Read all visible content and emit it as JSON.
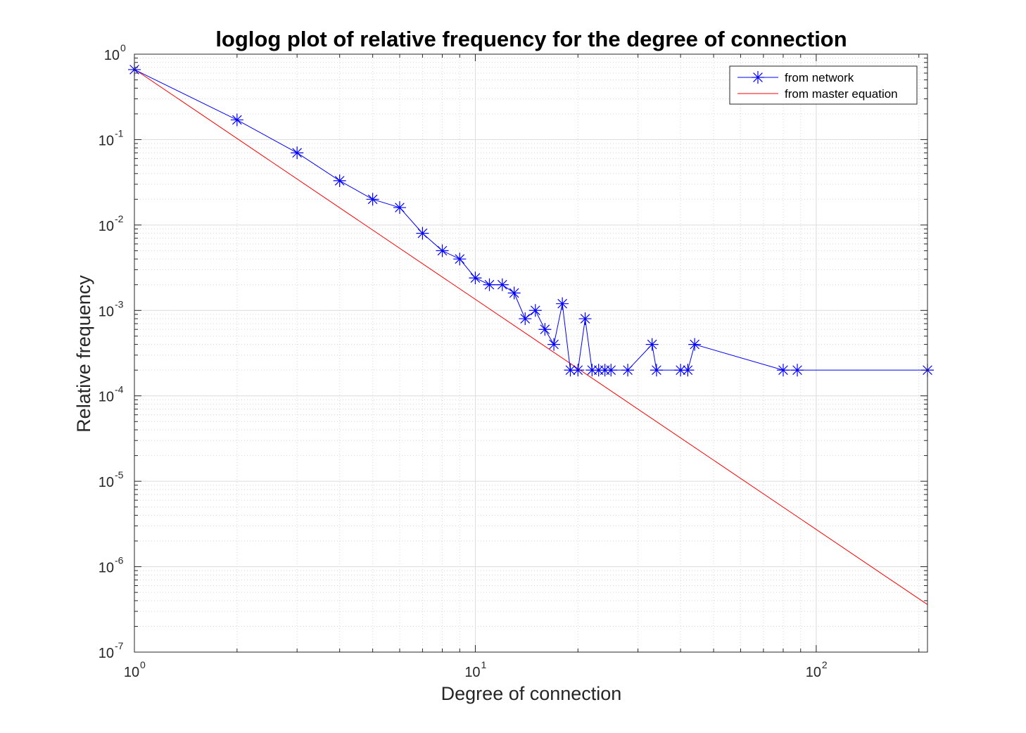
{
  "chart_data": {
    "type": "line",
    "title": "loglog plot of relative frequency for the degree of connection",
    "xlabel": "Degree of connection",
    "ylabel": "Relative frequency",
    "xscale": "log",
    "yscale": "log",
    "xlim": [
      1,
      212
    ],
    "ylim": [
      1e-07,
      1
    ],
    "grid": true,
    "minor_grid": true,
    "legend_position": "top-right",
    "x_ticks": [
      {
        "base": "10",
        "exp": "0",
        "value": 1
      },
      {
        "base": "10",
        "exp": "1",
        "value": 10
      },
      {
        "base": "10",
        "exp": "2",
        "value": 100
      }
    ],
    "y_ticks": [
      {
        "base": "10",
        "exp": "0",
        "value": 1
      },
      {
        "base": "10",
        "exp": "-1",
        "value": 0.1
      },
      {
        "base": "10",
        "exp": "-2",
        "value": 0.01
      },
      {
        "base": "10",
        "exp": "-3",
        "value": 0.001
      },
      {
        "base": "10",
        "exp": "-4",
        "value": 0.0001
      },
      {
        "base": "10",
        "exp": "-5",
        "value": 1e-05
      },
      {
        "base": "10",
        "exp": "-6",
        "value": 1e-06
      },
      {
        "base": "10",
        "exp": "-7",
        "value": 1e-07
      }
    ],
    "series": [
      {
        "name": "from network",
        "color": "#0000ff",
        "marker": "asterisk",
        "points": [
          {
            "x": 1,
            "y": 0.66
          },
          {
            "x": 2,
            "y": 0.17
          },
          {
            "x": 3,
            "y": 0.07
          },
          {
            "x": 4,
            "y": 0.033
          },
          {
            "x": 5,
            "y": 0.02
          },
          {
            "x": 6,
            "y": 0.016
          },
          {
            "x": 7,
            "y": 0.008
          },
          {
            "x": 8,
            "y": 0.005
          },
          {
            "x": 9,
            "y": 0.004
          },
          {
            "x": 10,
            "y": 0.0024
          },
          {
            "x": 11,
            "y": 0.002
          },
          {
            "x": 12,
            "y": 0.002
          },
          {
            "x": 13,
            "y": 0.0016
          },
          {
            "x": 14,
            "y": 0.0008
          },
          {
            "x": 15,
            "y": 0.001
          },
          {
            "x": 16,
            "y": 0.0006
          },
          {
            "x": 17,
            "y": 0.0004
          },
          {
            "x": 18,
            "y": 0.0012
          },
          {
            "x": 19,
            "y": 0.0002
          },
          {
            "x": 20,
            "y": 0.0002
          },
          {
            "x": 21,
            "y": 0.0008
          },
          {
            "x": 22,
            "y": 0.0002
          },
          {
            "x": 23,
            "y": 0.0002
          },
          {
            "x": 24,
            "y": 0.0002
          },
          {
            "x": 25,
            "y": 0.0002
          },
          {
            "x": 28,
            "y": 0.0002
          },
          {
            "x": 33,
            "y": 0.0004
          },
          {
            "x": 34,
            "y": 0.0002
          },
          {
            "x": 40,
            "y": 0.0002
          },
          {
            "x": 42,
            "y": 0.0002
          },
          {
            "x": 44,
            "y": 0.0004
          },
          {
            "x": 80,
            "y": 0.0002
          },
          {
            "x": 88,
            "y": 0.0002
          },
          {
            "x": 212,
            "y": 0.0002
          }
        ]
      },
      {
        "name": "from master equation",
        "color": "#ff0000",
        "marker": "none",
        "points": [
          {
            "x": 1,
            "y": 0.667
          },
          {
            "x": 212,
            "y": 3.6e-07
          }
        ]
      }
    ]
  }
}
